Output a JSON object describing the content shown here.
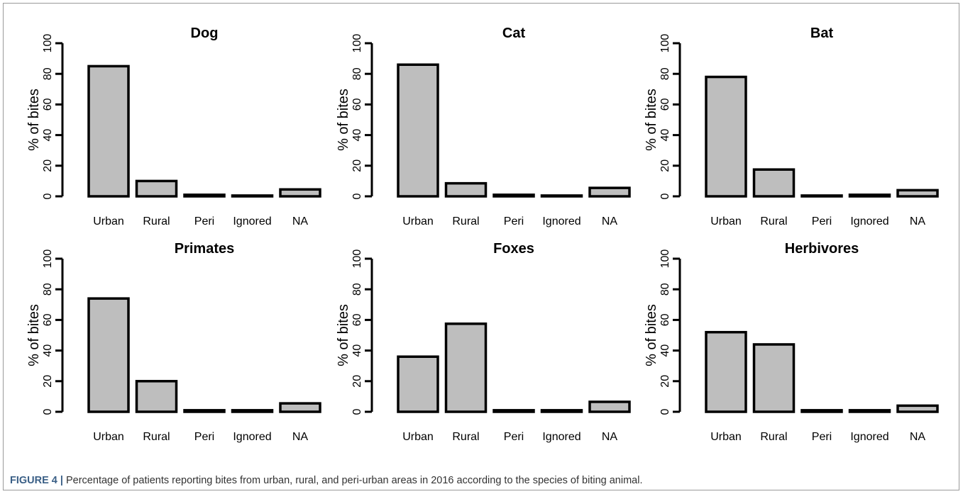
{
  "caption": {
    "label": "FIGURE 4 |",
    "text": " Percentage of patients reporting bites from urban, rural, and peri-urban areas in 2016 according to the species of biting animal."
  },
  "colors": {
    "bar_fill": "#bebebe",
    "bar_stroke": "#000000",
    "caption_label": "#3a5f86"
  },
  "chart_data": [
    {
      "type": "bar",
      "title": "Dog",
      "ylabel": "% of bites",
      "ylim": [
        0,
        100
      ],
      "yticks": [
        "0",
        "20",
        "40",
        "60",
        "80",
        "100"
      ],
      "categories": [
        "Urban",
        "Rural",
        "Peri",
        "Ignored",
        "NA"
      ],
      "values": [
        85,
        10,
        1,
        0.5,
        4.5
      ]
    },
    {
      "type": "bar",
      "title": "Cat",
      "ylabel": "% of bites",
      "ylim": [
        0,
        100
      ],
      "yticks": [
        "0",
        "20",
        "40",
        "60",
        "80",
        "100"
      ],
      "categories": [
        "Urban",
        "Rural",
        "Peri",
        "Ignored",
        "NA"
      ],
      "values": [
        86,
        8.5,
        1,
        0.5,
        5.5
      ]
    },
    {
      "type": "bar",
      "title": "Bat",
      "ylabel": "% of bites",
      "ylim": [
        0,
        100
      ],
      "yticks": [
        "0",
        "20",
        "40",
        "60",
        "80",
        "100"
      ],
      "categories": [
        "Urban",
        "Rural",
        "Peri",
        "Ignored",
        "NA"
      ],
      "values": [
        78,
        17.5,
        0.5,
        1,
        4
      ]
    },
    {
      "type": "bar",
      "title": "Primates",
      "ylabel": "% of bites",
      "ylim": [
        0,
        100
      ],
      "yticks": [
        "0",
        "20",
        "40",
        "60",
        "80",
        "100"
      ],
      "categories": [
        "Urban",
        "Rural",
        "Peri",
        "Ignored",
        "NA"
      ],
      "values": [
        74,
        20,
        1,
        1,
        5.5
      ]
    },
    {
      "type": "bar",
      "title": "Foxes",
      "ylabel": "% of bites",
      "ylim": [
        0,
        100
      ],
      "yticks": [
        "0",
        "20",
        "40",
        "60",
        "80",
        "100"
      ],
      "categories": [
        "Urban",
        "Rural",
        "Peri",
        "Ignored",
        "NA"
      ],
      "values": [
        36,
        57.5,
        1,
        1,
        6.5
      ]
    },
    {
      "type": "bar",
      "title": "Herbivores",
      "ylabel": "% of bites",
      "ylim": [
        0,
        100
      ],
      "yticks": [
        "0",
        "20",
        "40",
        "60",
        "80",
        "100"
      ],
      "categories": [
        "Urban",
        "Rural",
        "Peri",
        "Ignored",
        "NA"
      ],
      "values": [
        52,
        44,
        1,
        1,
        4
      ]
    }
  ]
}
